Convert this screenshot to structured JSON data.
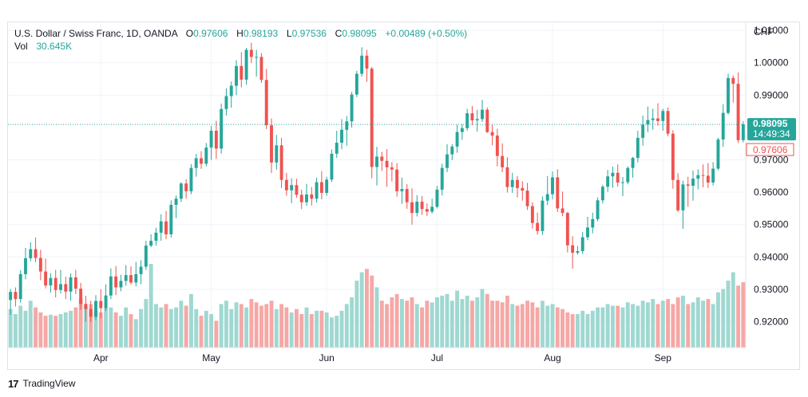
{
  "header": {
    "symbol": "U.S. Dollar / Swiss Franc, 1D, OANDA",
    "o_label": "O",
    "o_value": "0.97606",
    "h_label": "H",
    "h_value": "0.98193",
    "l_label": "L",
    "l_value": "0.97536",
    "c_label": "C",
    "c_value": "0.98095",
    "change": "+0.00489 (+0.50%)",
    "vol_label": "Vol",
    "vol_value": "30.645K"
  },
  "axis": {
    "currency": "CHF",
    "price_ticks": [
      "1.01000",
      "1.00000",
      "0.99000",
      "0.97000",
      "0.96000",
      "0.95000",
      "0.94000",
      "0.93000",
      "0.92000"
    ],
    "last_price": "0.98095",
    "countdown": "14:49:34",
    "open_price": "0.97606",
    "months": [
      "Apr",
      "May",
      "Jun",
      "Jul",
      "Aug",
      "Sep"
    ]
  },
  "footer": {
    "brand": "TradingView",
    "logo_glyph": "17"
  },
  "colors": {
    "up": "#26a69a",
    "down": "#ef5350",
    "vol_up": "#9fd8d1",
    "vol_down": "#f5a8a6",
    "grid": "#f0f3fa",
    "text": "#131722"
  },
  "chart_data": {
    "type": "candlestick",
    "ylim": [
      0.912,
      1.0125
    ],
    "price_ticks": [
      1.01,
      1.0,
      0.99,
      0.97,
      0.96,
      0.95,
      0.94,
      0.93,
      0.92
    ],
    "last_price": 0.98095,
    "month_ticks": [
      {
        "label": "Apr",
        "index": 18
      },
      {
        "label": "May",
        "index": 40
      },
      {
        "label": "Jun",
        "index": 63
      },
      {
        "label": "Jul",
        "index": 85
      },
      {
        "label": "Aug",
        "index": 108
      },
      {
        "label": "Sep",
        "index": 130
      }
    ],
    "candles": [
      [
        0.9267,
        0.9301,
        0.9221,
        0.9292
      ],
      [
        0.9292,
        0.9306,
        0.9247,
        0.927
      ],
      [
        0.927,
        0.9359,
        0.9259,
        0.9347
      ],
      [
        0.9347,
        0.9428,
        0.9331,
        0.9396
      ],
      [
        0.9396,
        0.9445,
        0.9387,
        0.9424
      ],
      [
        0.9424,
        0.946,
        0.9384,
        0.9397
      ],
      [
        0.9397,
        0.9422,
        0.9328,
        0.9355
      ],
      [
        0.9355,
        0.9395,
        0.9303,
        0.9312
      ],
      [
        0.9312,
        0.935,
        0.929,
        0.9335
      ],
      [
        0.9335,
        0.936,
        0.9275,
        0.9298
      ],
      [
        0.9298,
        0.936,
        0.9287,
        0.9316
      ],
      [
        0.9316,
        0.9339,
        0.927,
        0.9293
      ],
      [
        0.9293,
        0.9349,
        0.9265,
        0.9337
      ],
      [
        0.9337,
        0.936,
        0.9285,
        0.9302
      ],
      [
        0.9302,
        0.932,
        0.9237,
        0.9255
      ],
      [
        0.9255,
        0.928,
        0.92,
        0.9239
      ],
      [
        0.9239,
        0.9265,
        0.9199,
        0.9215
      ],
      [
        0.9215,
        0.9282,
        0.9205,
        0.9264
      ],
      [
        0.9264,
        0.93,
        0.921,
        0.9242
      ],
      [
        0.9242,
        0.9315,
        0.9233,
        0.9281
      ],
      [
        0.9281,
        0.9365,
        0.927,
        0.934
      ],
      [
        0.934,
        0.9372,
        0.9282,
        0.9306
      ],
      [
        0.9306,
        0.9345,
        0.9294,
        0.9326
      ],
      [
        0.9326,
        0.9375,
        0.9311,
        0.9344
      ],
      [
        0.9344,
        0.9371,
        0.9315,
        0.9321
      ],
      [
        0.9321,
        0.9385,
        0.9309,
        0.9347
      ],
      [
        0.9347,
        0.939,
        0.9316,
        0.937
      ],
      [
        0.937,
        0.945,
        0.936,
        0.9435
      ],
      [
        0.9435,
        0.947,
        0.943,
        0.945
      ],
      [
        0.945,
        0.949,
        0.9435,
        0.9475
      ],
      [
        0.9475,
        0.9532,
        0.945,
        0.951
      ],
      [
        0.951,
        0.9542,
        0.9455,
        0.947
      ],
      [
        0.947,
        0.9575,
        0.946,
        0.9561
      ],
      [
        0.9561,
        0.959,
        0.952,
        0.958
      ],
      [
        0.958,
        0.9631,
        0.957,
        0.9627
      ],
      [
        0.9627,
        0.964,
        0.958,
        0.9603
      ],
      [
        0.9603,
        0.9687,
        0.9594,
        0.9675
      ],
      [
        0.9675,
        0.9718,
        0.9648,
        0.9705
      ],
      [
        0.9705,
        0.9727,
        0.9672,
        0.9688
      ],
      [
        0.9688,
        0.9752,
        0.968,
        0.9738
      ],
      [
        0.9738,
        0.9805,
        0.97,
        0.979
      ],
      [
        0.979,
        0.9821,
        0.9703,
        0.9735
      ],
      [
        0.9735,
        0.9874,
        0.9719,
        0.9857
      ],
      [
        0.9857,
        0.9921,
        0.9837,
        0.9897
      ],
      [
        0.9897,
        0.9942,
        0.9861,
        0.9929
      ],
      [
        0.9929,
        1.0008,
        0.99,
        0.999
      ],
      [
        0.999,
        1.0033,
        0.9924,
        0.9948
      ],
      [
        0.9948,
        1.0046,
        0.9932,
        1.004
      ],
      [
        1.004,
        1.0062,
        0.9999,
        1.0018
      ],
      [
        1.0018,
        1.004,
        0.9957,
        1.0018
      ],
      [
        1.0018,
        1.003,
        0.9938,
        0.9947
      ],
      [
        0.9947,
        0.9981,
        0.9795,
        0.9807
      ],
      [
        0.9807,
        0.9828,
        0.9659,
        0.9692
      ],
      [
        0.9692,
        0.9777,
        0.967,
        0.9745
      ],
      [
        0.9745,
        0.9768,
        0.9613,
        0.9638
      ],
      [
        0.9638,
        0.966,
        0.9589,
        0.9606
      ],
      [
        0.9606,
        0.9643,
        0.9566,
        0.9622
      ],
      [
        0.9622,
        0.9642,
        0.9583,
        0.9592
      ],
      [
        0.9592,
        0.9608,
        0.9548,
        0.9569
      ],
      [
        0.9569,
        0.9626,
        0.9558,
        0.9593
      ],
      [
        0.9593,
        0.9616,
        0.9559,
        0.958
      ],
      [
        0.958,
        0.9645,
        0.9568,
        0.9631
      ],
      [
        0.9631,
        0.9665,
        0.9578,
        0.9598
      ],
      [
        0.9598,
        0.9648,
        0.9589,
        0.9639
      ],
      [
        0.9639,
        0.9732,
        0.9632,
        0.9719
      ],
      [
        0.9719,
        0.979,
        0.9706,
        0.9753
      ],
      [
        0.9753,
        0.9826,
        0.9733,
        0.9793
      ],
      [
        0.9793,
        0.9835,
        0.9744,
        0.9819
      ],
      [
        0.9819,
        0.991,
        0.98,
        0.9902
      ],
      [
        0.9902,
        0.9975,
        0.9894,
        0.9966
      ],
      [
        0.9966,
        1.0048,
        0.9957,
        1.0022
      ],
      [
        1.0022,
        1.004,
        0.9941,
        0.9982
      ],
      [
        0.9982,
        0.9987,
        0.9643,
        0.9678
      ],
      [
        0.9678,
        0.974,
        0.9621,
        0.971
      ],
      [
        0.971,
        0.9725,
        0.9666,
        0.9697
      ],
      [
        0.9697,
        0.9733,
        0.9617,
        0.9677
      ],
      [
        0.9677,
        0.9693,
        0.9633,
        0.967
      ],
      [
        0.967,
        0.969,
        0.9586,
        0.9603
      ],
      [
        0.9603,
        0.9645,
        0.9564,
        0.961
      ],
      [
        0.961,
        0.9625,
        0.9549,
        0.9569
      ],
      [
        0.9569,
        0.9612,
        0.95,
        0.9536
      ],
      [
        0.9536,
        0.9591,
        0.9525,
        0.9571
      ],
      [
        0.9571,
        0.9588,
        0.953,
        0.9548
      ],
      [
        0.9548,
        0.9565,
        0.9527,
        0.954
      ],
      [
        0.954,
        0.958,
        0.9534,
        0.9555
      ],
      [
        0.9555,
        0.962,
        0.955,
        0.9608
      ],
      [
        0.9608,
        0.9688,
        0.959,
        0.9675
      ],
      [
        0.9675,
        0.9748,
        0.9662,
        0.9717
      ],
      [
        0.9717,
        0.9749,
        0.9699,
        0.9741
      ],
      [
        0.9741,
        0.9808,
        0.9722,
        0.9786
      ],
      [
        0.9786,
        0.981,
        0.9762,
        0.9798
      ],
      [
        0.9798,
        0.9858,
        0.979,
        0.9844
      ],
      [
        0.9844,
        0.9866,
        0.9808,
        0.9822
      ],
      [
        0.9822,
        0.9855,
        0.9787,
        0.9826
      ],
      [
        0.9826,
        0.9885,
        0.9817,
        0.9855
      ],
      [
        0.9855,
        0.9862,
        0.9783,
        0.9786
      ],
      [
        0.9786,
        0.9809,
        0.9745,
        0.9775
      ],
      [
        0.9775,
        0.9796,
        0.968,
        0.9712
      ],
      [
        0.9712,
        0.9751,
        0.9662,
        0.9677
      ],
      [
        0.9677,
        0.9708,
        0.9599,
        0.9616
      ],
      [
        0.9616,
        0.966,
        0.9598,
        0.9638
      ],
      [
        0.9638,
        0.965,
        0.9584,
        0.9613
      ],
      [
        0.9613,
        0.9634,
        0.9574,
        0.9605
      ],
      [
        0.9605,
        0.9629,
        0.9545,
        0.9557
      ],
      [
        0.9557,
        0.9569,
        0.9488,
        0.9505
      ],
      [
        0.9505,
        0.9537,
        0.9469,
        0.948
      ],
      [
        0.948,
        0.9587,
        0.9468,
        0.9574
      ],
      [
        0.9574,
        0.965,
        0.956,
        0.9594
      ],
      [
        0.9594,
        0.9664,
        0.9578,
        0.9646
      ],
      [
        0.9646,
        0.9671,
        0.9539,
        0.955
      ],
      [
        0.955,
        0.9602,
        0.9526,
        0.9536
      ],
      [
        0.9536,
        0.954,
        0.9414,
        0.9436
      ],
      [
        0.9436,
        0.9464,
        0.9364,
        0.9413
      ],
      [
        0.9413,
        0.9434,
        0.9407,
        0.9418
      ],
      [
        0.9418,
        0.9477,
        0.9409,
        0.9461
      ],
      [
        0.9461,
        0.9524,
        0.9452,
        0.9491
      ],
      [
        0.9491,
        0.9537,
        0.9473,
        0.9517
      ],
      [
        0.9517,
        0.9584,
        0.951,
        0.9575
      ],
      [
        0.9575,
        0.9623,
        0.9565,
        0.9617
      ],
      [
        0.9617,
        0.9669,
        0.9601,
        0.9649
      ],
      [
        0.9649,
        0.9679,
        0.9614,
        0.966
      ],
      [
        0.966,
        0.9686,
        0.9617,
        0.963
      ],
      [
        0.963,
        0.9647,
        0.9588,
        0.9631
      ],
      [
        0.9631,
        0.968,
        0.9625,
        0.9675
      ],
      [
        0.9675,
        0.9709,
        0.9645,
        0.9706
      ],
      [
        0.9706,
        0.979,
        0.9692,
        0.9768
      ],
      [
        0.9768,
        0.9837,
        0.9744,
        0.9809
      ],
      [
        0.9809,
        0.9865,
        0.9786,
        0.9823
      ],
      [
        0.9823,
        0.9858,
        0.9793,
        0.9828
      ],
      [
        0.9828,
        0.9875,
        0.9806,
        0.982
      ],
      [
        0.982,
        0.9858,
        0.979,
        0.9851
      ],
      [
        0.9851,
        0.9862,
        0.9773,
        0.9781
      ],
      [
        0.9781,
        0.9792,
        0.9611,
        0.9638
      ],
      [
        0.9638,
        0.9659,
        0.9539,
        0.9544
      ],
      [
        0.9544,
        0.9636,
        0.9487,
        0.9624
      ],
      [
        0.9624,
        0.9648,
        0.9555,
        0.962
      ],
      [
        0.962,
        0.9667,
        0.9574,
        0.9642
      ],
      [
        0.9642,
        0.9671,
        0.9609,
        0.9653
      ],
      [
        0.9653,
        0.9686,
        0.9615,
        0.9651
      ],
      [
        0.9651,
        0.969,
        0.9613,
        0.963
      ],
      [
        0.963,
        0.9693,
        0.9621,
        0.9673
      ],
      [
        0.9673,
        0.9768,
        0.9668,
        0.9763
      ],
      [
        0.9763,
        0.9872,
        0.974,
        0.9845
      ],
      [
        0.9845,
        0.9966,
        0.984,
        0.9953
      ],
      [
        0.9953,
        0.9961,
        0.9877,
        0.9935
      ],
      [
        0.9935,
        0.997,
        0.9752,
        0.9761
      ],
      [
        0.9761,
        0.9819,
        0.9754,
        0.981
      ]
    ],
    "volumes": [
      [
        11.5,
        1
      ],
      [
        10.0,
        1
      ],
      [
        12.5,
        1
      ],
      [
        11.0,
        1
      ],
      [
        14.0,
        1
      ],
      [
        12.0,
        0
      ],
      [
        10.5,
        0
      ],
      [
        9.5,
        0
      ],
      [
        9.8,
        1
      ],
      [
        9.5,
        0
      ],
      [
        10.0,
        1
      ],
      [
        10.5,
        1
      ],
      [
        11.0,
        1
      ],
      [
        12.0,
        0
      ],
      [
        14.5,
        0
      ],
      [
        12.5,
        1
      ],
      [
        13.0,
        0
      ],
      [
        11.0,
        1
      ],
      [
        10.5,
        0
      ],
      [
        11.8,
        1
      ],
      [
        12.0,
        1
      ],
      [
        10.5,
        0
      ],
      [
        9.5,
        1
      ],
      [
        12.0,
        1
      ],
      [
        10.0,
        0
      ],
      [
        8.5,
        1
      ],
      [
        11.5,
        1
      ],
      [
        14.5,
        1
      ],
      [
        25.0,
        1
      ],
      [
        13.0,
        1
      ],
      [
        12.0,
        1
      ],
      [
        13.0,
        0
      ],
      [
        11.5,
        1
      ],
      [
        12.0,
        1
      ],
      [
        14.0,
        1
      ],
      [
        12.5,
        0
      ],
      [
        16.0,
        1
      ],
      [
        11.5,
        1
      ],
      [
        9.5,
        0
      ],
      [
        11.0,
        1
      ],
      [
        10.0,
        1
      ],
      [
        8.0,
        0
      ],
      [
        13.0,
        1
      ],
      [
        14.0,
        1
      ],
      [
        11.5,
        1
      ],
      [
        13.5,
        1
      ],
      [
        13.0,
        0
      ],
      [
        12.0,
        1
      ],
      [
        14.5,
        0
      ],
      [
        13.5,
        0
      ],
      [
        12.5,
        0
      ],
      [
        13.0,
        0
      ],
      [
        14.0,
        0
      ],
      [
        11.5,
        1
      ],
      [
        13.0,
        0
      ],
      [
        12.0,
        0
      ],
      [
        10.5,
        1
      ],
      [
        11.5,
        0
      ],
      [
        10.0,
        0
      ],
      [
        12.0,
        1
      ],
      [
        10.0,
        0
      ],
      [
        11.0,
        1
      ],
      [
        11.0,
        0
      ],
      [
        10.5,
        1
      ],
      [
        9.0,
        1
      ],
      [
        9.5,
        1
      ],
      [
        11.0,
        1
      ],
      [
        13.0,
        1
      ],
      [
        15.0,
        1
      ],
      [
        20.0,
        1
      ],
      [
        22.5,
        1
      ],
      [
        23.5,
        0
      ],
      [
        21.5,
        0
      ],
      [
        18.0,
        1
      ],
      [
        14.0,
        0
      ],
      [
        13.0,
        0
      ],
      [
        15.0,
        0
      ],
      [
        16.0,
        0
      ],
      [
        14.5,
        1
      ],
      [
        14.0,
        0
      ],
      [
        15.0,
        0
      ],
      [
        13.0,
        1
      ],
      [
        12.0,
        0
      ],
      [
        14.0,
        0
      ],
      [
        13.5,
        1
      ],
      [
        15.0,
        1
      ],
      [
        15.5,
        1
      ],
      [
        16.0,
        1
      ],
      [
        14.0,
        1
      ],
      [
        17.0,
        1
      ],
      [
        14.5,
        1
      ],
      [
        15.5,
        1
      ],
      [
        14.0,
        0
      ],
      [
        15.0,
        1
      ],
      [
        17.5,
        1
      ],
      [
        16.0,
        0
      ],
      [
        14.0,
        0
      ],
      [
        14.0,
        0
      ],
      [
        13.5,
        0
      ],
      [
        15.5,
        0
      ],
      [
        13.0,
        1
      ],
      [
        12.5,
        0
      ],
      [
        13.0,
        0
      ],
      [
        14.0,
        0
      ],
      [
        13.5,
        0
      ],
      [
        12.0,
        0
      ],
      [
        14.0,
        1
      ],
      [
        12.5,
        1
      ],
      [
        13.0,
        1
      ],
      [
        12.0,
        0
      ],
      [
        11.5,
        0
      ],
      [
        10.5,
        0
      ],
      [
        10.0,
        0
      ],
      [
        10.0,
        1
      ],
      [
        11.0,
        1
      ],
      [
        10.0,
        1
      ],
      [
        11.0,
        1
      ],
      [
        12.0,
        1
      ],
      [
        12.0,
        1
      ],
      [
        13.0,
        1
      ],
      [
        12.5,
        1
      ],
      [
        12.5,
        0
      ],
      [
        12.0,
        1
      ],
      [
        13.5,
        1
      ],
      [
        13.0,
        1
      ],
      [
        12.5,
        1
      ],
      [
        14.0,
        1
      ],
      [
        13.5,
        1
      ],
      [
        14.5,
        1
      ],
      [
        13.0,
        0
      ],
      [
        14.0,
        1
      ],
      [
        14.5,
        0
      ],
      [
        13.0,
        0
      ],
      [
        15.0,
        0
      ],
      [
        15.5,
        1
      ],
      [
        13.0,
        0
      ],
      [
        13.5,
        1
      ],
      [
        15.0,
        1
      ],
      [
        14.0,
        1
      ],
      [
        14.5,
        0
      ],
      [
        13.0,
        1
      ],
      [
        16.5,
        1
      ],
      [
        17.5,
        1
      ],
      [
        20.0,
        1
      ],
      [
        22.5,
        1
      ],
      [
        18.5,
        0
      ],
      [
        19.5,
        0
      ]
    ]
  }
}
